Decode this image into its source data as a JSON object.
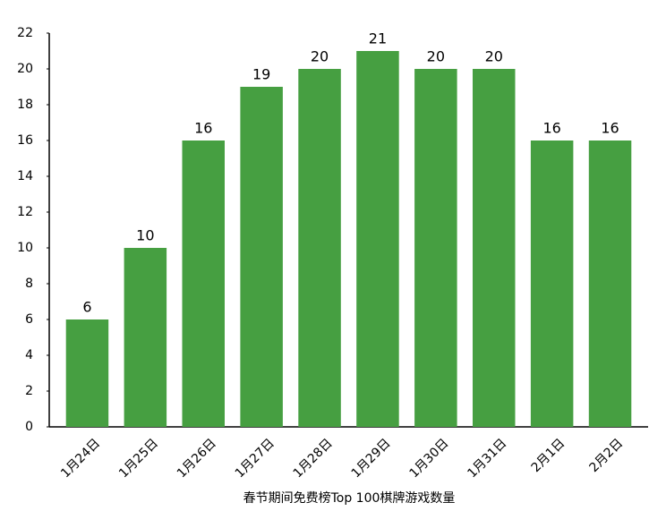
{
  "chart_data": {
    "type": "bar",
    "x_label": "春节期间免费榜Top 100棋牌游戏数量",
    "categories": [
      "1月24日",
      "1月25日",
      "1月26日",
      "1月27日",
      "1月28日",
      "1月29日",
      "1月30日",
      "1月31日",
      "2月1日",
      "2月2日"
    ],
    "values": [
      6,
      10,
      16,
      19,
      20,
      21,
      20,
      20,
      16,
      16
    ],
    "color": "#469f41",
    "ylim": [
      0,
      22
    ],
    "yticks": [
      0,
      2,
      4,
      6,
      8,
      10,
      12,
      14,
      16,
      18,
      20,
      22
    ],
    "grid": false
  }
}
